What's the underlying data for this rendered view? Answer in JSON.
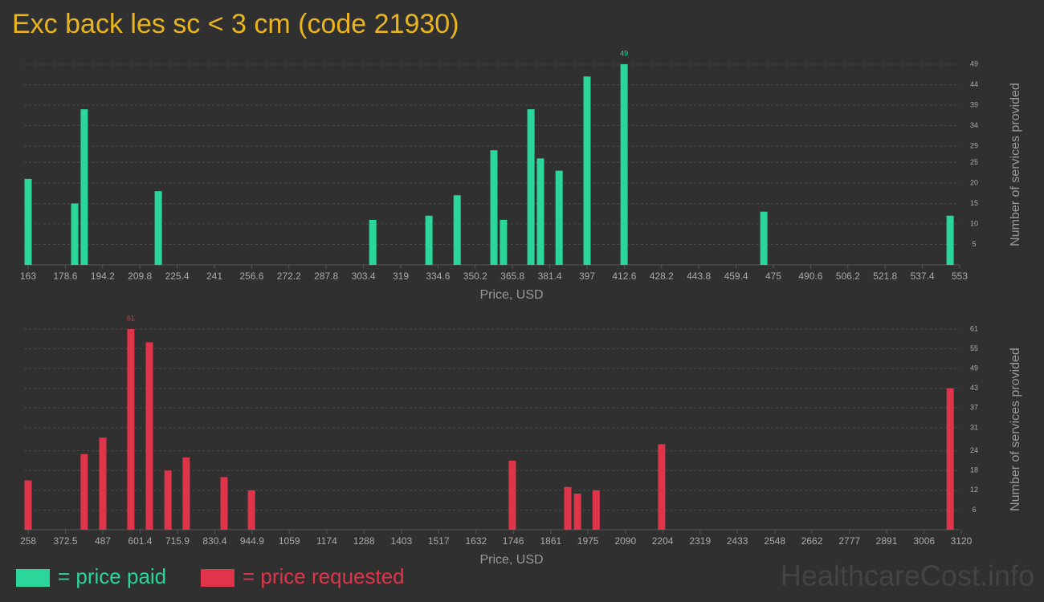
{
  "chart_data": [
    {
      "type": "bar",
      "title": "Exc back les sc < 3 cm (code 21930)",
      "x_label": "Price, USD",
      "y_label": "Number of services provided",
      "xlim": [
        163,
        553
      ],
      "ylim": [
        0,
        49
      ],
      "xticks": [
        163,
        178.6,
        194.2,
        209.8,
        225.4,
        241,
        256.6,
        272.2,
        287.8,
        303.4,
        319,
        334.6,
        350.2,
        365.8,
        381.4,
        397,
        412.6,
        428.2,
        443.8,
        459.4,
        475,
        490.6,
        506.2,
        521.8,
        537.4,
        553
      ],
      "yticks": [
        5,
        10,
        15,
        20,
        25,
        29,
        34,
        39,
        44,
        49
      ],
      "grid": true,
      "x": [
        163,
        182.5,
        186.5,
        217.5,
        307.3,
        330.8,
        342.6,
        358,
        362,
        373.5,
        377.5,
        385.3,
        397,
        412.5,
        471,
        549
      ],
      "series": [
        {
          "name": "= price paid",
          "color": "#2ad69a",
          "values": [
            21,
            15,
            38,
            18,
            11,
            12,
            17,
            28,
            11,
            38,
            26,
            23,
            46,
            49,
            13,
            12
          ]
        }
      ]
    },
    {
      "type": "bar",
      "x_label": "Price, USD",
      "y_label": "Number of services provided",
      "xlim": [
        258,
        3120
      ],
      "ylim": [
        0,
        61
      ],
      "xticks": [
        258,
        372.5,
        487,
        601.4,
        715.9,
        830.4,
        944.9,
        1059,
        1174,
        1288,
        1403,
        1517,
        1632,
        1746,
        1861,
        1975,
        2090,
        2204,
        2319,
        2433,
        2548,
        2662,
        2777,
        2891,
        3006,
        3120
      ],
      "yticks": [
        6,
        12,
        18,
        24,
        31,
        37,
        43,
        49,
        55,
        61
      ],
      "grid": true,
      "x": [
        258,
        430,
        487,
        573,
        630,
        687,
        743,
        859,
        943,
        1743,
        1913,
        1943,
        2000,
        2201,
        3086
      ],
      "series": [
        {
          "name": "= price requested",
          "color": "#e0344a",
          "values": [
            15,
            23,
            28,
            61,
            57,
            18,
            22,
            16,
            12,
            21,
            13,
            11,
            12,
            26,
            43
          ]
        }
      ]
    }
  ],
  "watermark": "HealthcareCost.info"
}
